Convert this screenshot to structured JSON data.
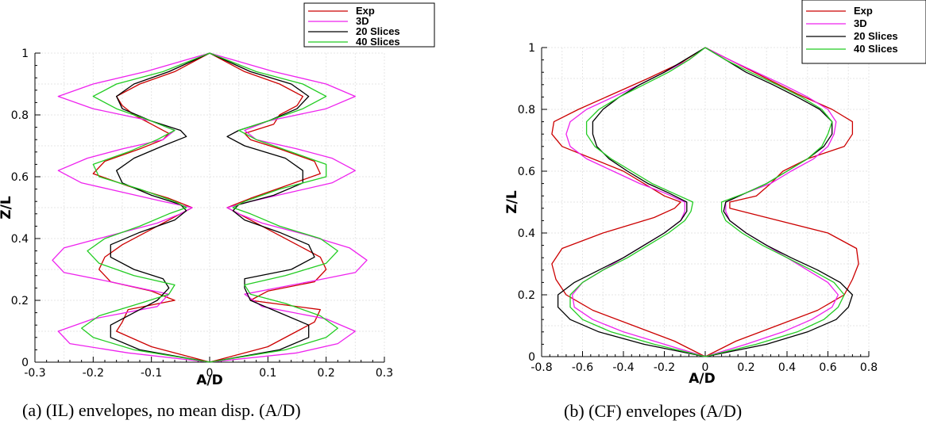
{
  "chart_data": [
    {
      "type": "line",
      "caption": "(a) (IL) envelopes, no mean disp. (A/D)",
      "xlabel": "A/D",
      "ylabel": "Z/L",
      "xlim": [
        -0.3,
        0.3
      ],
      "ylim": [
        0,
        1
      ],
      "xticks": [
        "-0.3",
        "-0.2",
        "-0.1",
        "0",
        "0.1",
        "0.2",
        "0.3"
      ],
      "yticks": [
        "0",
        "0.2",
        "0.4",
        "0.6",
        "0.8",
        "1"
      ],
      "grid": true,
      "legend": "top-right",
      "series": [
        {
          "name": "Exp",
          "color": "#cc0000",
          "z": [
            0,
            0.05,
            0.1,
            0.13,
            0.17,
            0.2,
            0.23,
            0.26,
            0.3,
            0.34,
            0.38,
            0.43,
            0.47,
            0.5,
            0.53,
            0.57,
            0.61,
            0.65,
            0.69,
            0.72,
            0.74,
            0.77,
            0.8,
            0.83,
            0.86,
            0.9,
            0.94,
            1.0
          ],
          "right": [
            0,
            0.1,
            0.15,
            0.18,
            0.19,
            0.07,
            0.1,
            0.18,
            0.2,
            0.19,
            0.15,
            0.1,
            0.06,
            0.03,
            0.07,
            0.13,
            0.19,
            0.18,
            0.12,
            0.07,
            0.06,
            0.11,
            0.12,
            0.15,
            0.16,
            0.12,
            0.06,
            0
          ],
          "left": [
            0,
            -0.1,
            -0.16,
            -0.15,
            -0.14,
            -0.06,
            -0.1,
            -0.17,
            -0.19,
            -0.18,
            -0.15,
            -0.1,
            -0.06,
            -0.03,
            -0.07,
            -0.14,
            -0.2,
            -0.18,
            -0.12,
            -0.08,
            -0.07,
            -0.1,
            -0.13,
            -0.15,
            -0.16,
            -0.12,
            -0.06,
            0
          ]
        },
        {
          "name": "3D",
          "color": "#ee22ee",
          "z": [
            0,
            0.03,
            0.06,
            0.1,
            0.14,
            0.18,
            0.22,
            0.26,
            0.29,
            0.33,
            0.37,
            0.41,
            0.45,
            0.48,
            0.5,
            0.52,
            0.55,
            0.58,
            0.62,
            0.66,
            0.69,
            0.72,
            0.75,
            0.78,
            0.82,
            0.86,
            0.9,
            0.94,
            1.0
          ],
          "right": [
            0,
            0.15,
            0.22,
            0.25,
            0.2,
            0.09,
            0.06,
            0.17,
            0.25,
            0.27,
            0.24,
            0.17,
            0.09,
            0.05,
            0.03,
            0.07,
            0.14,
            0.21,
            0.25,
            0.21,
            0.15,
            0.08,
            0.06,
            0.1,
            0.2,
            0.25,
            0.2,
            0.11,
            0
          ],
          "left": [
            0,
            -0.14,
            -0.24,
            -0.26,
            -0.2,
            -0.09,
            -0.07,
            -0.17,
            -0.25,
            -0.27,
            -0.25,
            -0.17,
            -0.09,
            -0.05,
            -0.03,
            -0.08,
            -0.15,
            -0.22,
            -0.26,
            -0.21,
            -0.15,
            -0.08,
            -0.06,
            -0.1,
            -0.2,
            -0.26,
            -0.2,
            -0.11,
            0
          ]
        },
        {
          "name": "20 Slices",
          "color": "#000000",
          "z": [
            0,
            0.04,
            0.08,
            0.12,
            0.16,
            0.2,
            0.24,
            0.27,
            0.3,
            0.34,
            0.38,
            0.42,
            0.46,
            0.49,
            0.51,
            0.54,
            0.58,
            0.62,
            0.66,
            0.7,
            0.73,
            0.75,
            0.78,
            0.82,
            0.86,
            0.9,
            0.94,
            1.0
          ],
          "right": [
            0,
            0.12,
            0.17,
            0.17,
            0.12,
            0.07,
            0.06,
            0.06,
            0.14,
            0.18,
            0.17,
            0.12,
            0.06,
            0.04,
            0.05,
            0.11,
            0.16,
            0.16,
            0.13,
            0.06,
            0.03,
            0.05,
            0.1,
            0.15,
            0.17,
            0.14,
            0.07,
            0
          ],
          "left": [
            0,
            -0.12,
            -0.17,
            -0.17,
            -0.13,
            -0.09,
            -0.07,
            -0.08,
            -0.13,
            -0.17,
            -0.17,
            -0.12,
            -0.06,
            -0.04,
            -0.05,
            -0.1,
            -0.15,
            -0.16,
            -0.13,
            -0.08,
            -0.04,
            -0.05,
            -0.1,
            -0.15,
            -0.16,
            -0.13,
            -0.07,
            0
          ]
        },
        {
          "name": "40 Slices",
          "color": "#22cc22",
          "z": [
            0,
            0.04,
            0.08,
            0.11,
            0.15,
            0.19,
            0.22,
            0.25,
            0.28,
            0.32,
            0.36,
            0.4,
            0.44,
            0.48,
            0.5,
            0.52,
            0.56,
            0.6,
            0.64,
            0.68,
            0.72,
            0.75,
            0.78,
            0.82,
            0.86,
            0.9,
            0.94,
            1.0
          ],
          "right": [
            0,
            0.13,
            0.2,
            0.22,
            0.19,
            0.13,
            0.07,
            0.06,
            0.13,
            0.2,
            0.22,
            0.19,
            0.12,
            0.07,
            0.04,
            0.06,
            0.12,
            0.2,
            0.2,
            0.14,
            0.08,
            0.05,
            0.1,
            0.16,
            0.2,
            0.16,
            0.08,
            0
          ],
          "left": [
            0,
            -0.13,
            -0.2,
            -0.22,
            -0.19,
            -0.12,
            -0.07,
            -0.06,
            -0.13,
            -0.19,
            -0.21,
            -0.18,
            -0.12,
            -0.07,
            -0.04,
            -0.06,
            -0.12,
            -0.19,
            -0.2,
            -0.14,
            -0.09,
            -0.06,
            -0.1,
            -0.16,
            -0.2,
            -0.16,
            -0.08,
            0
          ]
        }
      ]
    },
    {
      "type": "line",
      "caption": "(b) (CF) envelopes (A/D)",
      "xlabel": "A/D",
      "ylabel": "Z/L",
      "xlim": [
        -0.8,
        0.8
      ],
      "ylim": [
        0,
        1
      ],
      "xticks": [
        "-0.8",
        "-0.6",
        "-0.4",
        "-0.2",
        "0",
        "0.2",
        "0.4",
        "0.6",
        "0.8"
      ],
      "yticks": [
        "0",
        "0.2",
        "0.4",
        "0.6",
        "0.8",
        "1"
      ],
      "grid": true,
      "legend": "top-right",
      "series": [
        {
          "name": "Exp",
          "color": "#cc0000",
          "z": [
            0,
            0.05,
            0.1,
            0.15,
            0.2,
            0.25,
            0.3,
            0.35,
            0.4,
            0.45,
            0.48,
            0.5,
            0.52,
            0.56,
            0.6,
            0.64,
            0.68,
            0.72,
            0.76,
            0.8,
            0.85,
            0.9,
            0.95,
            1.0
          ],
          "right": [
            0,
            0.15,
            0.35,
            0.55,
            0.68,
            0.72,
            0.75,
            0.74,
            0.6,
            0.3,
            0.12,
            0.12,
            0.25,
            0.32,
            0.38,
            0.5,
            0.68,
            0.72,
            0.72,
            0.62,
            0.45,
            0.3,
            0.15,
            0
          ],
          "left": [
            0,
            -0.15,
            -0.35,
            -0.55,
            -0.68,
            -0.73,
            -0.75,
            -0.7,
            -0.5,
            -0.25,
            -0.15,
            -0.12,
            -0.2,
            -0.3,
            -0.4,
            -0.55,
            -0.7,
            -0.75,
            -0.74,
            -0.62,
            -0.45,
            -0.28,
            -0.12,
            0
          ]
        },
        {
          "name": "3D",
          "color": "#ee22ee",
          "z": [
            0,
            0.04,
            0.08,
            0.12,
            0.16,
            0.2,
            0.24,
            0.28,
            0.32,
            0.36,
            0.4,
            0.44,
            0.47,
            0.5,
            0.53,
            0.56,
            0.6,
            0.64,
            0.68,
            0.72,
            0.76,
            0.8,
            0.84,
            0.88,
            0.92,
            0.96,
            1.0
          ],
          "right": [
            0,
            0.2,
            0.38,
            0.52,
            0.62,
            0.65,
            0.6,
            0.5,
            0.4,
            0.3,
            0.2,
            0.12,
            0.1,
            0.1,
            0.2,
            0.32,
            0.42,
            0.53,
            0.6,
            0.63,
            0.64,
            0.6,
            0.5,
            0.38,
            0.25,
            0.12,
            0
          ],
          "left": [
            0,
            -0.2,
            -0.4,
            -0.55,
            -0.64,
            -0.65,
            -0.6,
            -0.5,
            -0.4,
            -0.3,
            -0.2,
            -0.12,
            -0.1,
            -0.1,
            -0.2,
            -0.32,
            -0.45,
            -0.58,
            -0.66,
            -0.68,
            -0.66,
            -0.58,
            -0.45,
            -0.32,
            -0.2,
            -0.08,
            0
          ]
        },
        {
          "name": "20 Slices",
          "color": "#000000",
          "z": [
            0,
            0.04,
            0.08,
            0.12,
            0.16,
            0.2,
            0.24,
            0.28,
            0.32,
            0.36,
            0.4,
            0.44,
            0.47,
            0.5,
            0.53,
            0.56,
            0.6,
            0.64,
            0.68,
            0.72,
            0.76,
            0.8,
            0.84,
            0.88,
            0.92,
            0.96,
            1.0
          ],
          "right": [
            0,
            0.3,
            0.5,
            0.64,
            0.7,
            0.72,
            0.66,
            0.55,
            0.42,
            0.3,
            0.2,
            0.12,
            0.09,
            0.1,
            0.2,
            0.3,
            0.4,
            0.5,
            0.58,
            0.62,
            0.62,
            0.56,
            0.45,
            0.33,
            0.2,
            0.1,
            0
          ],
          "left": [
            0,
            -0.3,
            -0.52,
            -0.66,
            -0.72,
            -0.72,
            -0.64,
            -0.52,
            -0.4,
            -0.3,
            -0.2,
            -0.12,
            -0.09,
            -0.09,
            -0.18,
            -0.28,
            -0.38,
            -0.47,
            -0.53,
            -0.55,
            -0.55,
            -0.5,
            -0.42,
            -0.32,
            -0.2,
            -0.1,
            0
          ]
        },
        {
          "name": "40 Slices",
          "color": "#22cc22",
          "z": [
            0,
            0.04,
            0.08,
            0.12,
            0.16,
            0.2,
            0.24,
            0.28,
            0.32,
            0.36,
            0.4,
            0.44,
            0.47,
            0.5,
            0.53,
            0.56,
            0.6,
            0.64,
            0.68,
            0.72,
            0.76,
            0.8,
            0.84,
            0.88,
            0.92,
            0.96,
            1.0
          ],
          "right": [
            0,
            0.25,
            0.45,
            0.58,
            0.65,
            0.68,
            0.63,
            0.52,
            0.4,
            0.28,
            0.18,
            0.1,
            0.08,
            0.08,
            0.2,
            0.3,
            0.4,
            0.5,
            0.57,
            0.6,
            0.62,
            0.57,
            0.47,
            0.35,
            0.22,
            0.1,
            0
          ],
          "left": [
            0,
            -0.25,
            -0.46,
            -0.6,
            -0.66,
            -0.66,
            -0.6,
            -0.5,
            -0.38,
            -0.28,
            -0.18,
            -0.1,
            -0.07,
            -0.06,
            -0.16,
            -0.26,
            -0.36,
            -0.46,
            -0.54,
            -0.58,
            -0.58,
            -0.52,
            -0.42,
            -0.3,
            -0.18,
            -0.08,
            0
          ]
        }
      ]
    }
  ]
}
